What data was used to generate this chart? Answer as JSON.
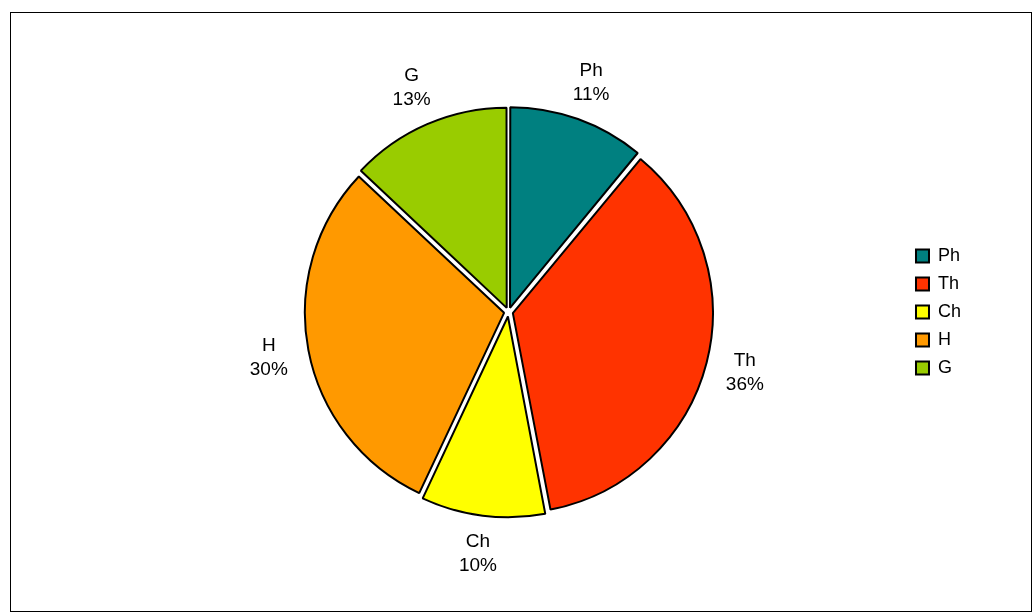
{
  "chart_data": {
    "type": "pie",
    "categories": [
      "Ph",
      "Th",
      "Ch",
      "H",
      "G"
    ],
    "values": [
      11,
      36,
      10,
      30,
      13
    ],
    "value_labels": [
      "11%",
      "36%",
      "10%",
      "30%",
      "13%"
    ],
    "colors": [
      "#008080",
      "#ff3300",
      "#ffff00",
      "#ff9900",
      "#99cc00"
    ],
    "legend": "right"
  }
}
